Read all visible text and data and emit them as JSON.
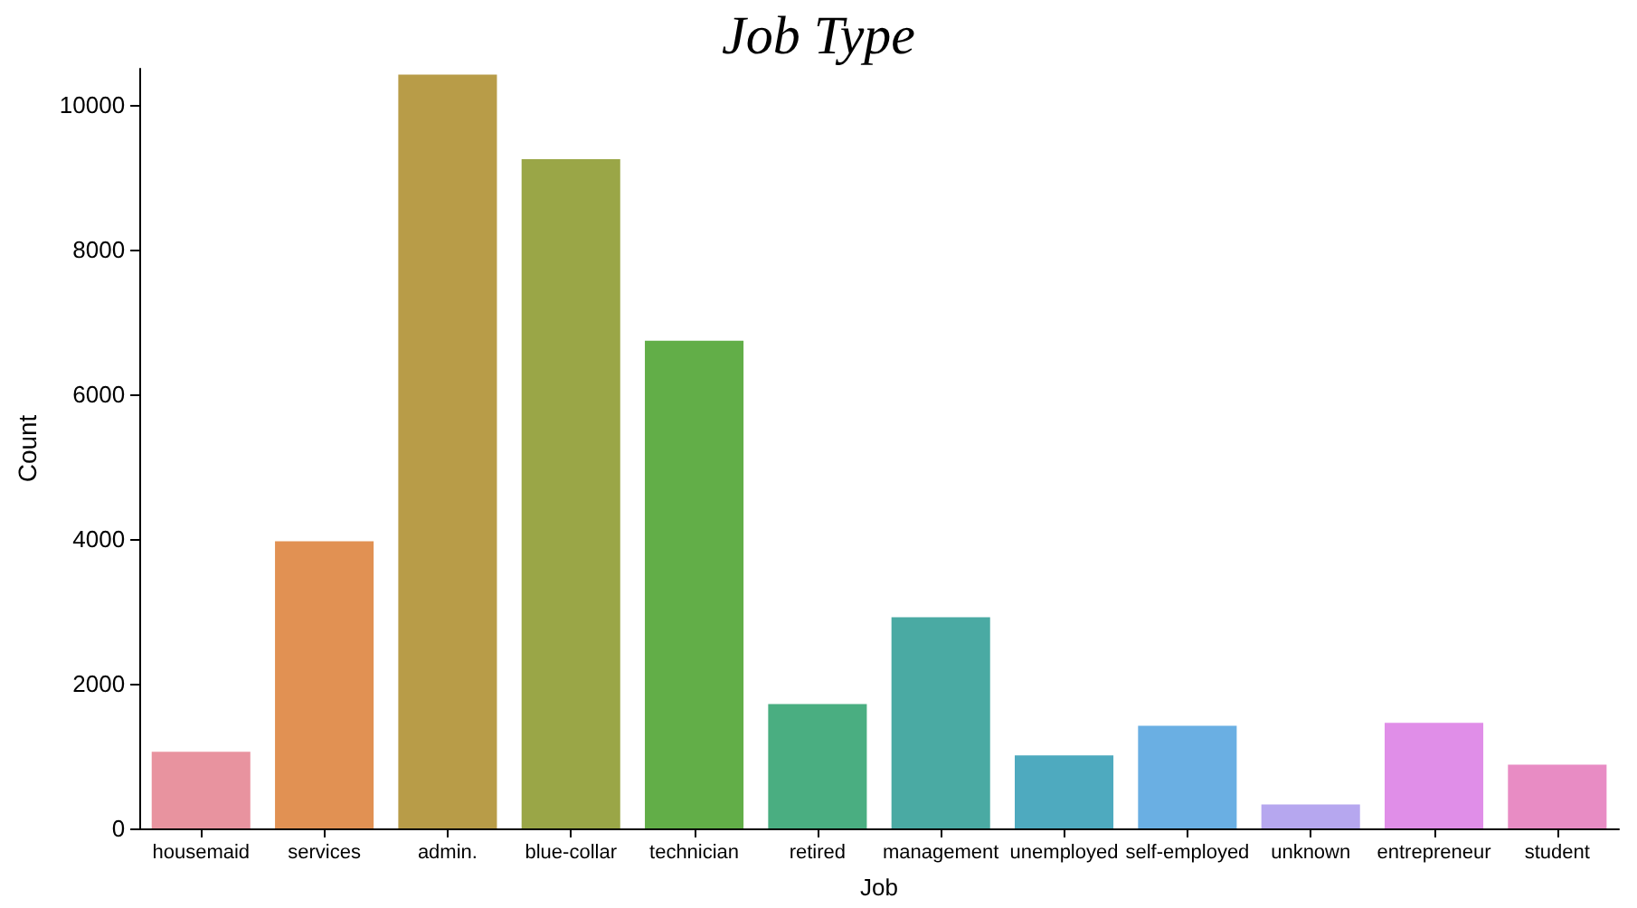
{
  "chart_data": {
    "type": "bar",
    "title": "Job Type",
    "xlabel": "Job",
    "ylabel": "Count",
    "categories": [
      "housemaid",
      "services",
      "admin.",
      "blue-collar",
      "technician",
      "retired",
      "management",
      "unemployed",
      "self-employed",
      "unknown",
      "entrepreneur",
      "student"
    ],
    "values": [
      1060,
      3970,
      10420,
      9250,
      6740,
      1720,
      2920,
      1010,
      1420,
      330,
      1460,
      880
    ],
    "colors": [
      "#e8939f",
      "#e19153",
      "#b89c48",
      "#9aa647",
      "#62ae48",
      "#4aae81",
      "#4aaaa3",
      "#4eaabf",
      "#6aafe3",
      "#b6a7ef",
      "#e08ee8",
      "#e88cc4"
    ],
    "ylim": [
      0,
      10500
    ],
    "yticks": [
      0,
      2000,
      4000,
      6000,
      8000,
      10000
    ],
    "grid": false
  }
}
